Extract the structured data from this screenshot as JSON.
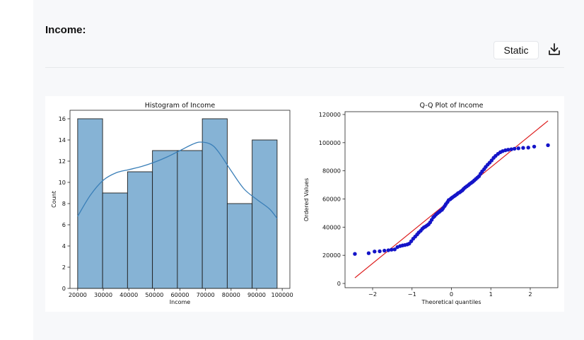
{
  "section": {
    "title": "Income:",
    "static_label": "Static",
    "download_icon": "download-icon"
  },
  "chart_data": [
    {
      "type": "bar",
      "title": "Histogram of Income",
      "xlabel": "Income",
      "ylabel": "Count",
      "xlim": [
        17000,
        103000
      ],
      "ylim": [
        0,
        16.8
      ],
      "xticks": [
        20000,
        30000,
        40000,
        50000,
        60000,
        70000,
        80000,
        90000,
        100000
      ],
      "yticks": [
        0,
        2,
        4,
        6,
        8,
        10,
        12,
        14,
        16
      ],
      "bins": [
        {
          "x0": 20000,
          "x1": 29750,
          "count": 16
        },
        {
          "x0": 29750,
          "x1": 39500,
          "count": 9
        },
        {
          "x0": 39500,
          "x1": 49250,
          "count": 11
        },
        {
          "x0": 49250,
          "x1": 59000,
          "count": 13
        },
        {
          "x0": 59000,
          "x1": 68750,
          "count": 13
        },
        {
          "x0": 68750,
          "x1": 78500,
          "count": 16
        },
        {
          "x0": 78500,
          "x1": 88250,
          "count": 8
        },
        {
          "x0": 88250,
          "x1": 98000,
          "count": 14
        }
      ],
      "kde": {
        "x": [
          20000,
          25000,
          30000,
          35000,
          40000,
          45000,
          50000,
          55000,
          60000,
          65000,
          68000,
          72000,
          75000,
          80000,
          85000,
          90000,
          95000,
          98000
        ],
        "y": [
          6.8,
          8.8,
          10.2,
          10.9,
          11.2,
          11.5,
          11.9,
          12.4,
          13.0,
          13.6,
          13.8,
          13.6,
          12.9,
          11.1,
          9.4,
          8.4,
          7.5,
          6.6
        ]
      },
      "colors": {
        "bar": "#86b3d5",
        "edge": "#1f1f1f",
        "kde": "#3a7fb8"
      }
    },
    {
      "type": "scatter",
      "title": "Q-Q Plot of Income",
      "xlabel": "Theoretical quantiles",
      "ylabel": "Ordered Values",
      "xlim": [
        -2.7,
        2.7
      ],
      "ylim": [
        -3000,
        122000
      ],
      "xticks": [
        -2,
        -1,
        0,
        1,
        2
      ],
      "xtick_labels": [
        "−2",
        "−1",
        "0",
        "1",
        "2"
      ],
      "yticks": [
        0,
        20000,
        40000,
        60000,
        80000,
        100000,
        120000
      ],
      "points": [
        [
          -2.45,
          21000
        ],
        [
          -2.1,
          21500
        ],
        [
          -1.95,
          22700
        ],
        [
          -1.82,
          22900
        ],
        [
          -1.7,
          23300
        ],
        [
          -1.6,
          23600
        ],
        [
          -1.52,
          24000
        ],
        [
          -1.44,
          24200
        ],
        [
          -1.37,
          25800
        ],
        [
          -1.3,
          26600
        ],
        [
          -1.24,
          27000
        ],
        [
          -1.18,
          27300
        ],
        [
          -1.12,
          27700
        ],
        [
          -1.07,
          28300
        ],
        [
          -1.02,
          30000
        ],
        [
          -0.97,
          31800
        ],
        [
          -0.92,
          33300
        ],
        [
          -0.87,
          34800
        ],
        [
          -0.83,
          36200
        ],
        [
          -0.78,
          37400
        ],
        [
          -0.74,
          38800
        ],
        [
          -0.7,
          39800
        ],
        [
          -0.66,
          40400
        ],
        [
          -0.62,
          41200
        ],
        [
          -0.58,
          42000
        ],
        [
          -0.54,
          43400
        ],
        [
          -0.5,
          45200
        ],
        [
          -0.46,
          47000
        ],
        [
          -0.43,
          47800
        ],
        [
          -0.39,
          49000
        ],
        [
          -0.35,
          50000
        ],
        [
          -0.31,
          50800
        ],
        [
          -0.28,
          51600
        ],
        [
          -0.24,
          52300
        ],
        [
          -0.21,
          53500
        ],
        [
          -0.17,
          55000
        ],
        [
          -0.14,
          56400
        ],
        [
          -0.1,
          57800
        ],
        [
          -0.07,
          59200
        ],
        [
          -0.03,
          59800
        ],
        [
          0.0,
          60600
        ],
        [
          0.03,
          61200
        ],
        [
          0.07,
          62000
        ],
        [
          0.1,
          62600
        ],
        [
          0.14,
          63400
        ],
        [
          0.17,
          64200
        ],
        [
          0.21,
          64700
        ],
        [
          0.24,
          65400
        ],
        [
          0.28,
          66200
        ],
        [
          0.31,
          67200
        ],
        [
          0.35,
          68200
        ],
        [
          0.39,
          69000
        ],
        [
          0.43,
          69800
        ],
        [
          0.46,
          70600
        ],
        [
          0.5,
          71400
        ],
        [
          0.54,
          72200
        ],
        [
          0.58,
          73200
        ],
        [
          0.62,
          74200
        ],
        [
          0.66,
          75200
        ],
        [
          0.7,
          76200
        ],
        [
          0.74,
          78000
        ],
        [
          0.78,
          79600
        ],
        [
          0.83,
          81200
        ],
        [
          0.87,
          82800
        ],
        [
          0.92,
          84400
        ],
        [
          0.97,
          85800
        ],
        [
          1.02,
          87400
        ],
        [
          1.07,
          89200
        ],
        [
          1.12,
          90600
        ],
        [
          1.18,
          92000
        ],
        [
          1.24,
          93200
        ],
        [
          1.3,
          94000
        ],
        [
          1.37,
          94600
        ],
        [
          1.44,
          95000
        ],
        [
          1.52,
          95300
        ],
        [
          1.6,
          95700
        ],
        [
          1.7,
          96000
        ],
        [
          1.82,
          96300
        ],
        [
          1.95,
          96500
        ],
        [
          2.1,
          97200
        ],
        [
          2.45,
          98200
        ]
      ],
      "fit_line": {
        "x": [
          -2.45,
          2.45
        ],
        "y": [
          4000,
          115500
        ]
      },
      "colors": {
        "point": "#1414c8",
        "line": "#dd1c1c"
      }
    }
  ]
}
